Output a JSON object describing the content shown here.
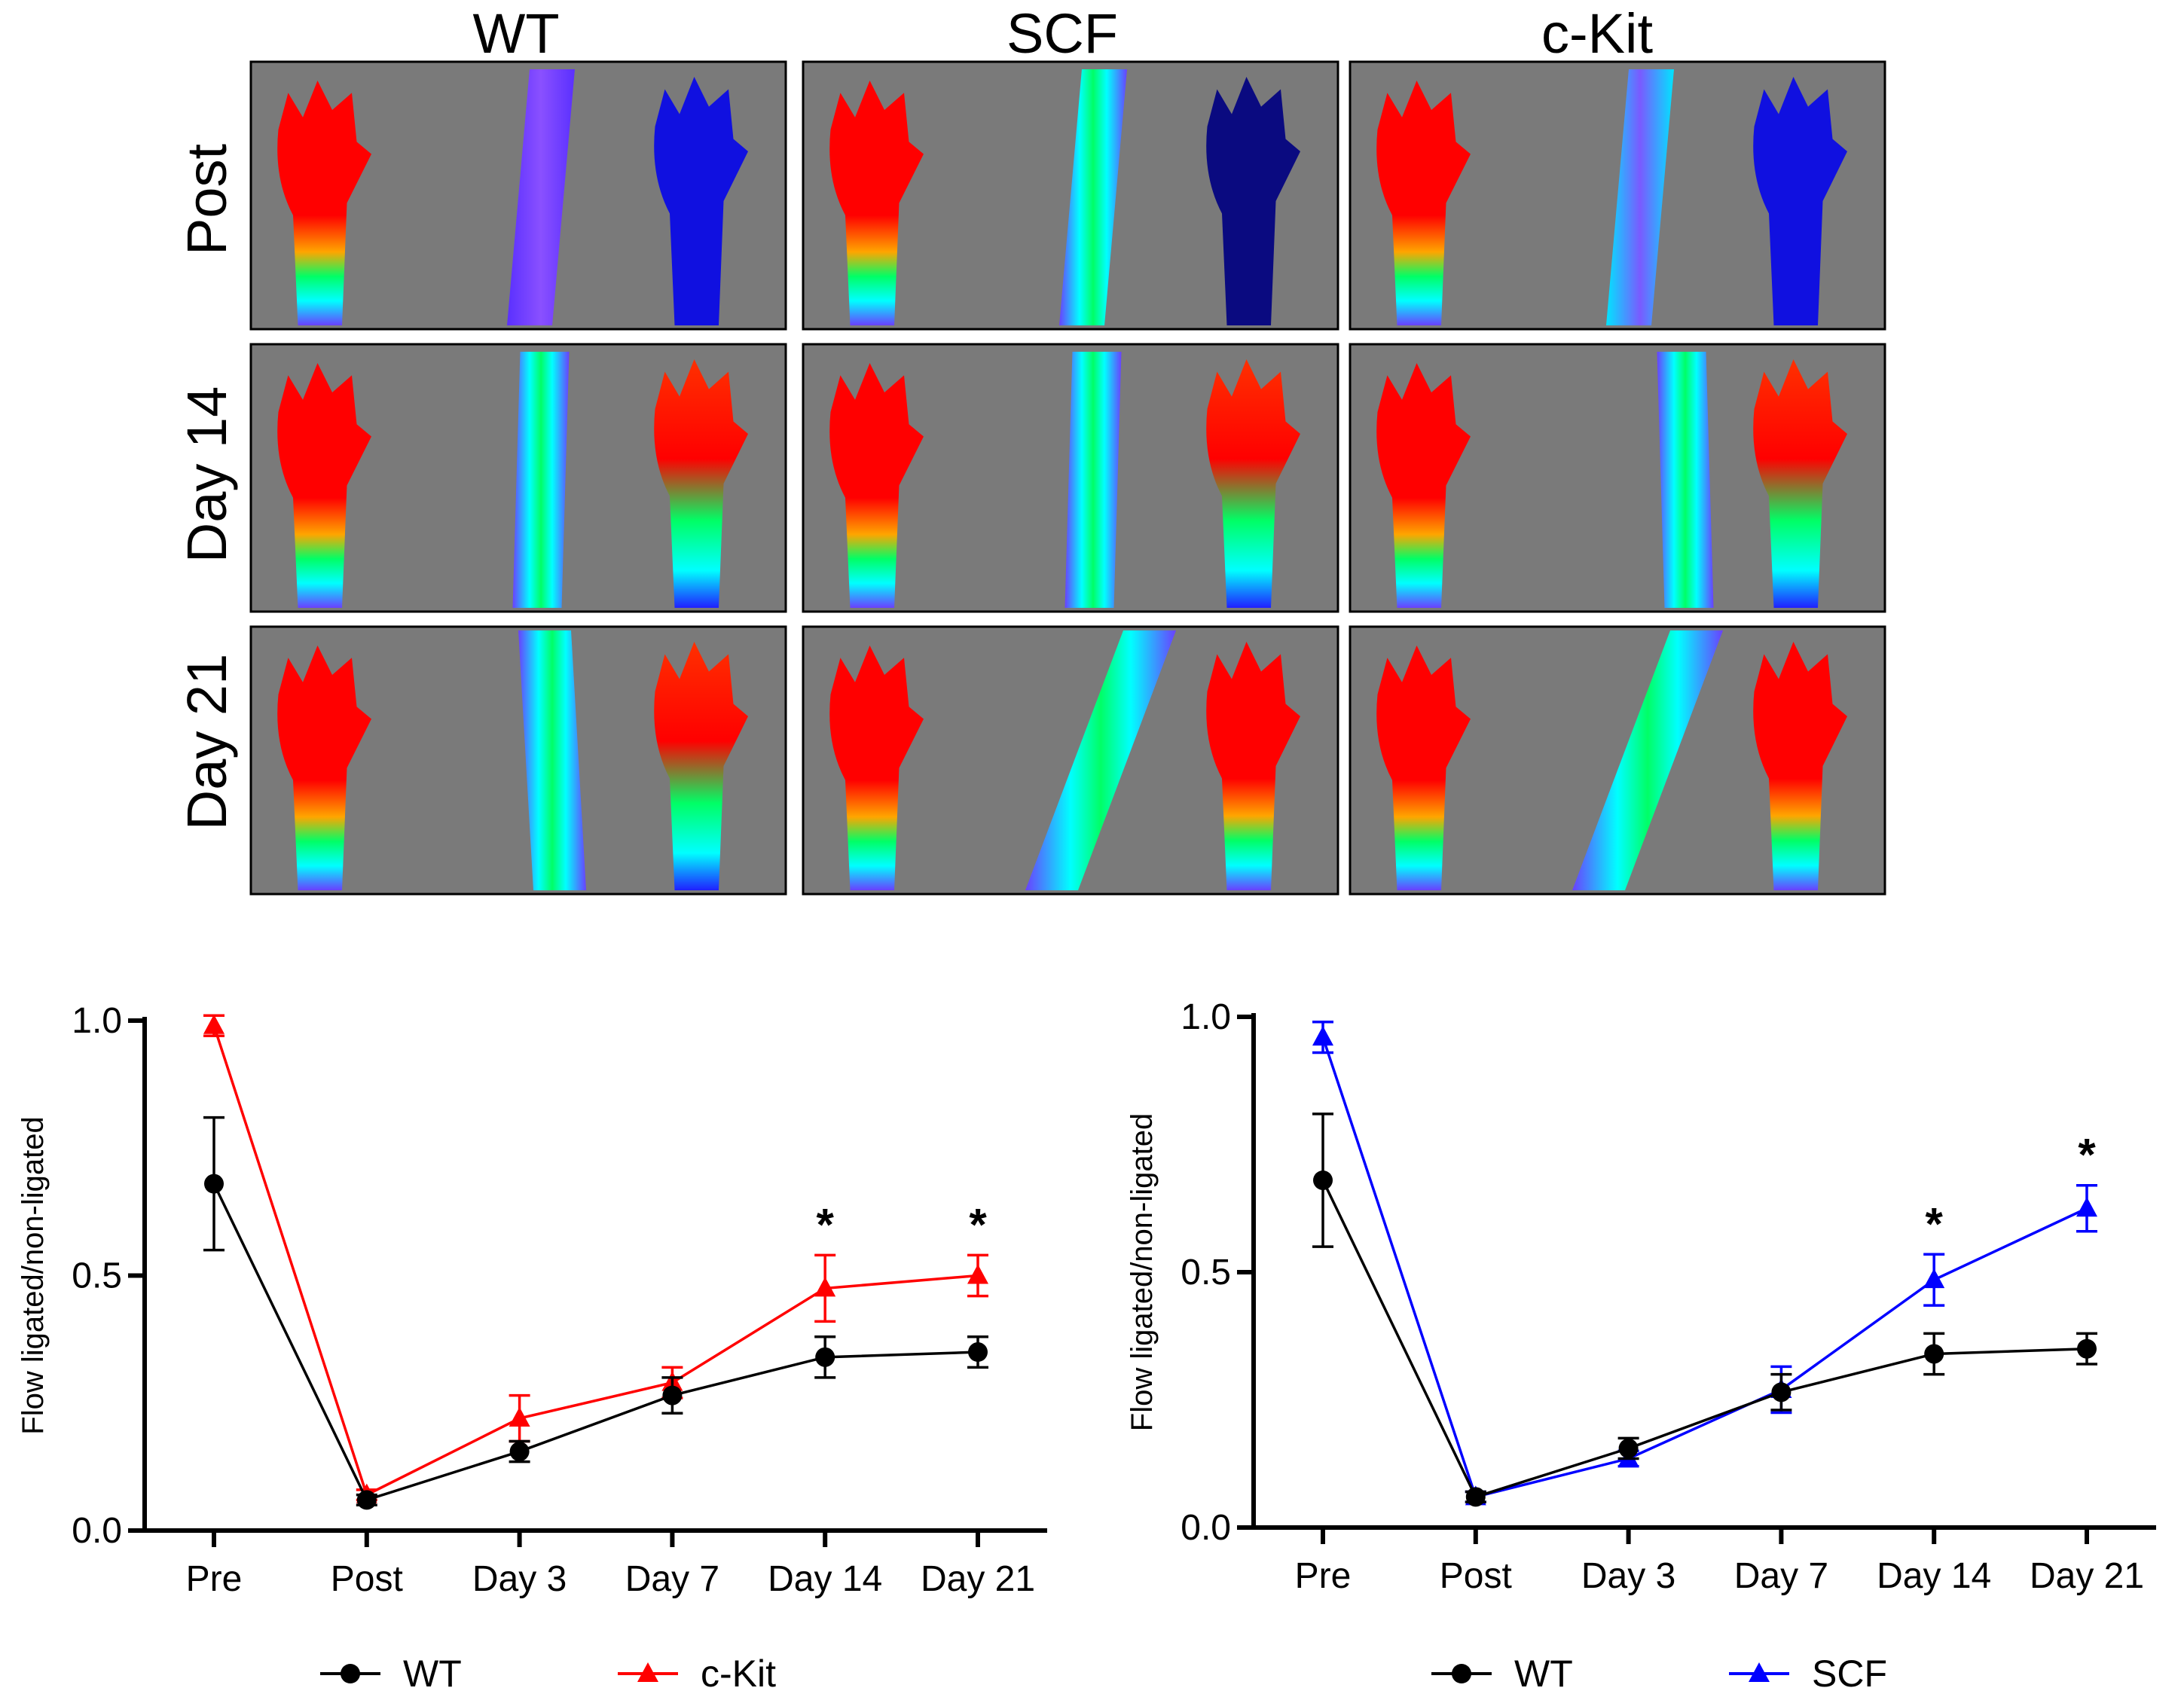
{
  "imaging": {
    "columns": [
      "WT",
      "SCF",
      "c-Kit"
    ],
    "rows": [
      "Post",
      "Day 14",
      "Day 21"
    ],
    "panel_background": "#7a7a7a",
    "heatmap_colors": {
      "high": "#ff0000",
      "mid_high": "#ffa500",
      "mid": "#00ff66",
      "mid_low": "#00ffff",
      "low": "#6a40ff",
      "lowest": "#0000cc"
    }
  },
  "chart_data": [
    {
      "type": "line",
      "x": [
        "Pre",
        "Post",
        "Day 3",
        "Day 7",
        "Day 14",
        "Day 21"
      ],
      "ylabel": "Flow ligated/non-ligated",
      "ylim": [
        0,
        1
      ],
      "yticks": [
        "0.0",
        "0.5",
        "1.0"
      ],
      "series": [
        {
          "name": "WT",
          "color": "#000000",
          "marker": "circle",
          "values": [
            0.68,
            0.06,
            0.155,
            0.265,
            0.34,
            0.35
          ],
          "errors": [
            0.13,
            0.01,
            0.02,
            0.035,
            0.04,
            0.03
          ]
        },
        {
          "name": "c-Kit",
          "color": "#ff0000",
          "marker": "triangle",
          "values": [
            0.99,
            0.07,
            0.22,
            0.29,
            0.475,
            0.5
          ],
          "errors": [
            0.02,
            0.01,
            0.045,
            0.03,
            0.065,
            0.04
          ]
        }
      ],
      "significance": [
        {
          "x": "Day 14",
          "label": "*"
        },
        {
          "x": "Day 21",
          "label": "*"
        }
      ],
      "legend": "bottom"
    },
    {
      "type": "line",
      "x": [
        "Pre",
        "Post",
        "Day 3",
        "Day 7",
        "Day 14",
        "Day 21"
      ],
      "ylabel": "Flow ligated/non-ligated",
      "ylim": [
        0,
        1
      ],
      "yticks": [
        "0.0",
        "0.5",
        "1.0"
      ],
      "series": [
        {
          "name": "WT",
          "color": "#000000",
          "marker": "circle",
          "values": [
            0.68,
            0.06,
            0.155,
            0.265,
            0.34,
            0.35
          ],
          "errors": [
            0.13,
            0.01,
            0.02,
            0.035,
            0.04,
            0.03
          ]
        },
        {
          "name": "SCF",
          "color": "#0000ff",
          "marker": "triangle",
          "values": [
            0.96,
            0.06,
            0.135,
            0.27,
            0.485,
            0.625
          ],
          "errors": [
            0.03,
            0.01,
            0.015,
            0.045,
            0.05,
            0.045
          ]
        }
      ],
      "significance": [
        {
          "x": "Day 14",
          "label": "*"
        },
        {
          "x": "Day 21",
          "label": "*"
        }
      ],
      "legend": "bottom"
    }
  ]
}
